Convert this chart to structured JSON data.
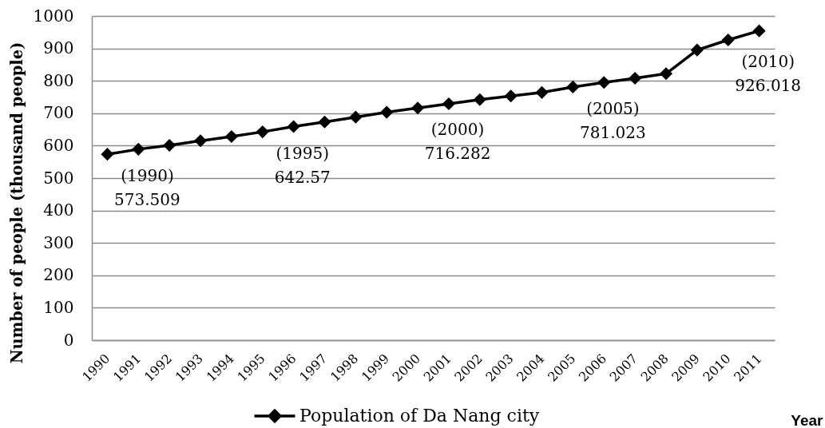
{
  "chart_data": {
    "type": "line",
    "categories": [
      "1990",
      "1991",
      "1992",
      "1993",
      "1994",
      "1995",
      "1996",
      "1997",
      "1998",
      "1999",
      "2000",
      "2001",
      "2002",
      "2003",
      "2004",
      "2005",
      "2006",
      "2007",
      "2008",
      "2009",
      "2010",
      "2011"
    ],
    "series": [
      {
        "name": "Population of Da Nang city",
        "color": "#000000",
        "values": [
          573.509,
          589,
          601,
          615,
          628,
          642.57,
          659,
          673,
          688,
          703,
          716.282,
          729,
          742,
          753,
          764,
          781.023,
          795,
          808,
          822,
          895,
          926.018,
          954
        ]
      }
    ],
    "xlabel": "Year",
    "ylabel": "Number of people (thousand people)",
    "ylim": [
      0,
      1000
    ],
    "yticks": [
      0,
      100,
      200,
      300,
      400,
      500,
      600,
      700,
      800,
      900,
      1000
    ],
    "annotations": [
      {
        "text": "(1990)\n573.509",
        "x": "1990",
        "y": 573.509
      },
      {
        "text": "(1995)\n642.57",
        "x": "1995",
        "y": 642.57
      },
      {
        "text": "(2000)\n716.282",
        "x": "2000",
        "y": 716.282
      },
      {
        "text": "(2005)\n781.023",
        "x": "2005",
        "y": 781.023
      },
      {
        "text": "(2010)\n926.018",
        "x": "2010",
        "y": 926.018
      }
    ],
    "grid": "y",
    "legend": "bottom",
    "marker": "diamond",
    "line_style": "solid"
  }
}
